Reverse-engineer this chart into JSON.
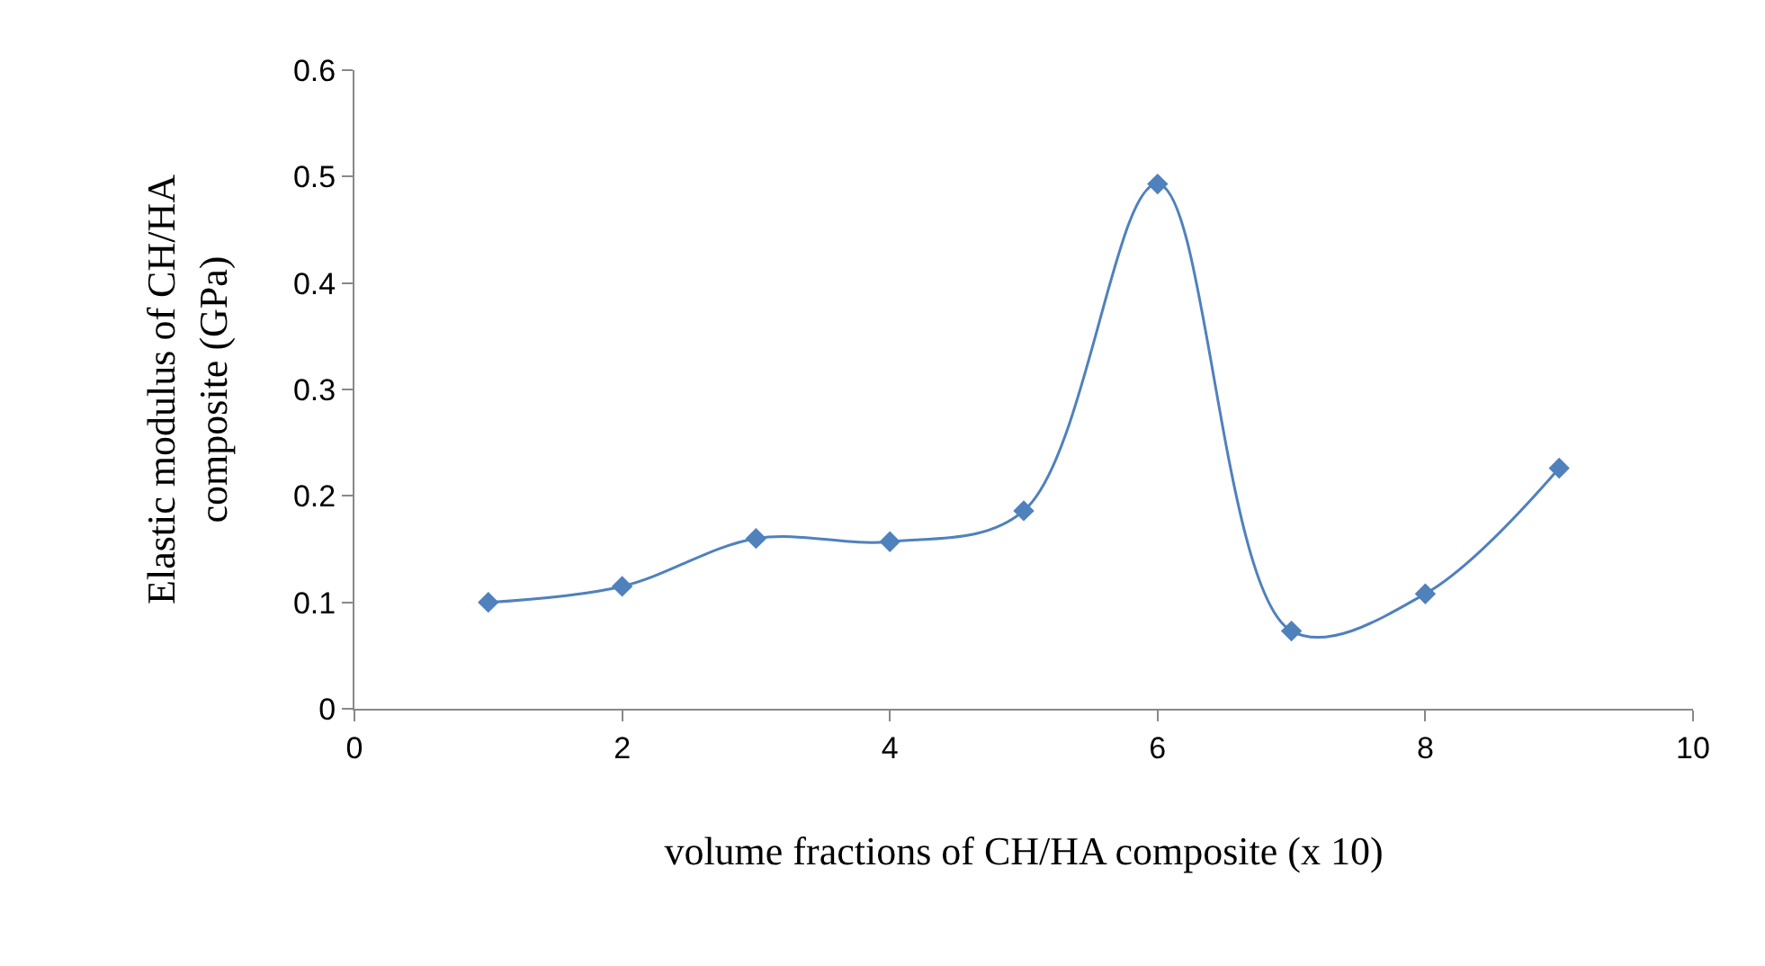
{
  "chart_data": {
    "type": "line",
    "xlabel": "volume fractions of CH/HA composite (x 10)",
    "ylabel": "Elastic modulus of CH/HA\ncomposite (GPa)",
    "x": [
      1,
      2,
      3,
      4,
      5,
      6,
      7,
      8,
      9
    ],
    "series": [
      {
        "color": "#4f81bd",
        "values": [
          0.1,
          0.115,
          0.16,
          0.157,
          0.186,
          0.493,
          0.073,
          0.108,
          0.226
        ]
      }
    ],
    "xlim": [
      0,
      10
    ],
    "xticks": [
      0,
      2,
      4,
      6,
      8,
      10
    ],
    "ylim": [
      0,
      0.6
    ],
    "yticks": [
      0,
      0.1,
      0.2,
      0.3,
      0.4,
      0.5,
      0.6
    ],
    "marker": "diamond",
    "line_style": "solid"
  }
}
